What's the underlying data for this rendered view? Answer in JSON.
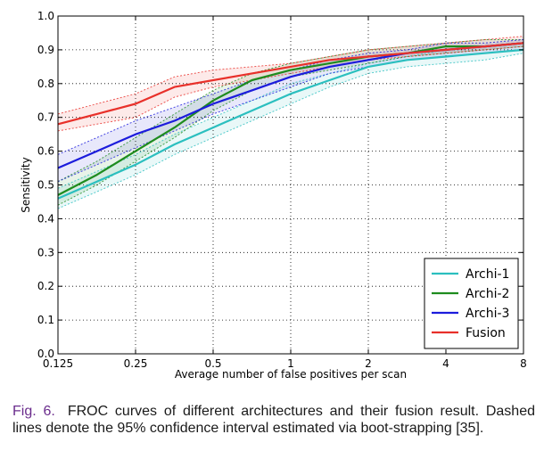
{
  "chart_data": {
    "type": "line",
    "title": "",
    "xlabel": "Average number of false positives per scan",
    "ylabel": "Sensitivity",
    "xscale": "log2",
    "xlim": [
      0.125,
      8
    ],
    "ylim": [
      0.0,
      1.0
    ],
    "xticks": [
      0.125,
      0.25,
      0.5,
      1,
      2,
      4,
      8
    ],
    "xtick_labels": [
      "0.125",
      "0.25",
      "0.5",
      "1",
      "2",
      "4",
      "8"
    ],
    "yticks": [
      0.0,
      0.1,
      0.2,
      0.3,
      0.4,
      0.5,
      0.6,
      0.7,
      0.8,
      0.9,
      1.0
    ],
    "ytick_labels": [
      "0.0",
      "0.1",
      "0.2",
      "0.3",
      "0.4",
      "0.5",
      "0.6",
      "0.7",
      "0.8",
      "0.9",
      "1.0"
    ],
    "grid": true,
    "legend_position": "bottom-right",
    "x": [
      0.125,
      0.177,
      0.25,
      0.354,
      0.5,
      0.707,
      1,
      1.414,
      2,
      2.828,
      4,
      5.657,
      8
    ],
    "series": [
      {
        "name": "Archi-1",
        "color": "#2bbfbf",
        "values": [
          0.46,
          0.51,
          0.56,
          0.62,
          0.67,
          0.72,
          0.77,
          0.81,
          0.85,
          0.87,
          0.88,
          0.89,
          0.9
        ],
        "ci_low": [
          0.43,
          0.48,
          0.53,
          0.59,
          0.64,
          0.69,
          0.74,
          0.79,
          0.83,
          0.85,
          0.86,
          0.87,
          0.89
        ],
        "ci_high": [
          0.49,
          0.54,
          0.59,
          0.65,
          0.7,
          0.75,
          0.8,
          0.83,
          0.86,
          0.88,
          0.9,
          0.91,
          0.92
        ]
      },
      {
        "name": "Archi-2",
        "color": "#1e8c1e",
        "values": [
          0.47,
          0.53,
          0.6,
          0.67,
          0.75,
          0.81,
          0.84,
          0.86,
          0.88,
          0.89,
          0.91,
          0.91,
          0.92
        ],
        "ci_low": [
          0.44,
          0.5,
          0.57,
          0.64,
          0.72,
          0.78,
          0.82,
          0.84,
          0.86,
          0.88,
          0.89,
          0.9,
          0.91
        ],
        "ci_high": [
          0.51,
          0.57,
          0.64,
          0.71,
          0.78,
          0.83,
          0.86,
          0.88,
          0.9,
          0.91,
          0.92,
          0.93,
          0.93
        ]
      },
      {
        "name": "Archi-3",
        "color": "#1c1cdc",
        "values": [
          0.55,
          0.6,
          0.65,
          0.69,
          0.74,
          0.78,
          0.82,
          0.85,
          0.87,
          0.89,
          0.9,
          0.91,
          0.92
        ],
        "ci_low": [
          0.51,
          0.56,
          0.61,
          0.66,
          0.71,
          0.75,
          0.79,
          0.83,
          0.85,
          0.87,
          0.88,
          0.89,
          0.9
        ],
        "ci_high": [
          0.59,
          0.64,
          0.69,
          0.73,
          0.77,
          0.81,
          0.84,
          0.87,
          0.89,
          0.9,
          0.92,
          0.92,
          0.93
        ]
      },
      {
        "name": "Fusion",
        "color": "#e8302a",
        "values": [
          0.68,
          0.71,
          0.74,
          0.79,
          0.81,
          0.83,
          0.85,
          0.87,
          0.88,
          0.89,
          0.9,
          0.91,
          0.92
        ],
        "ci_low": [
          0.66,
          0.68,
          0.7,
          0.76,
          0.79,
          0.81,
          0.83,
          0.85,
          0.87,
          0.88,
          0.89,
          0.9,
          0.91
        ],
        "ci_high": [
          0.71,
          0.74,
          0.77,
          0.82,
          0.84,
          0.85,
          0.86,
          0.88,
          0.9,
          0.91,
          0.92,
          0.93,
          0.94
        ]
      }
    ]
  },
  "caption": {
    "label": "Fig. 6.",
    "text": "FROC curves of different architectures and their fusion result. Dashed lines denote the 95% confidence interval estimated via boot-strapping [35]."
  }
}
